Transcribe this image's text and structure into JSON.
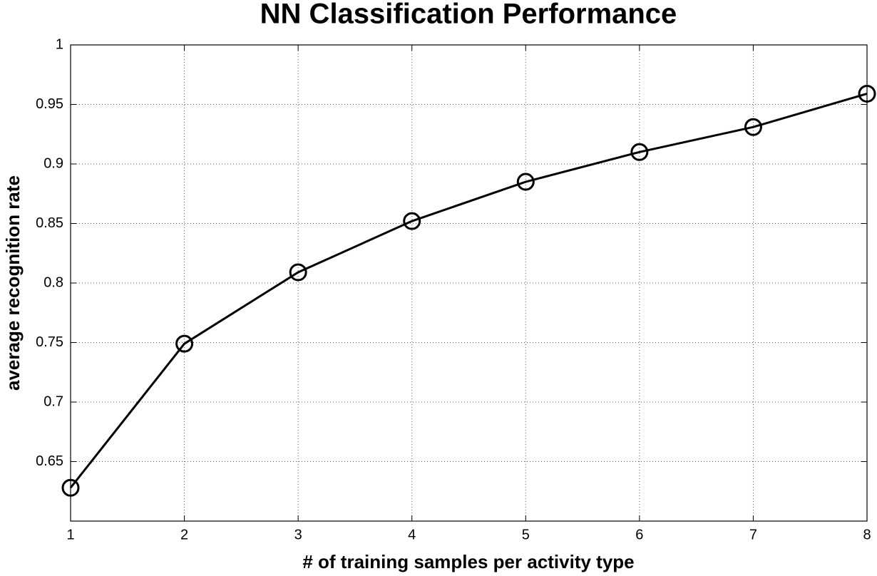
{
  "chart_data": {
    "type": "line",
    "title": "NN Classification Performance",
    "x_label": "# of training samples per activity type",
    "y_label": "average recognition rate",
    "x": [
      1,
      2,
      3,
      4,
      5,
      6,
      7,
      8
    ],
    "series": [
      {
        "color": "#000000",
        "values": [
          0.628,
          0.749,
          0.809,
          0.852,
          0.885,
          0.91,
          0.931,
          0.959
        ]
      }
    ],
    "xlim": [
      1,
      8
    ],
    "xticks": [
      1,
      2,
      3,
      4,
      5,
      6,
      7,
      8
    ],
    "ylim": [
      0.6,
      1
    ],
    "yticks": [
      0.65,
      0.7,
      0.75,
      0.8,
      0.85,
      0.9,
      0.95,
      1
    ],
    "grid": true,
    "marker": "circle"
  }
}
